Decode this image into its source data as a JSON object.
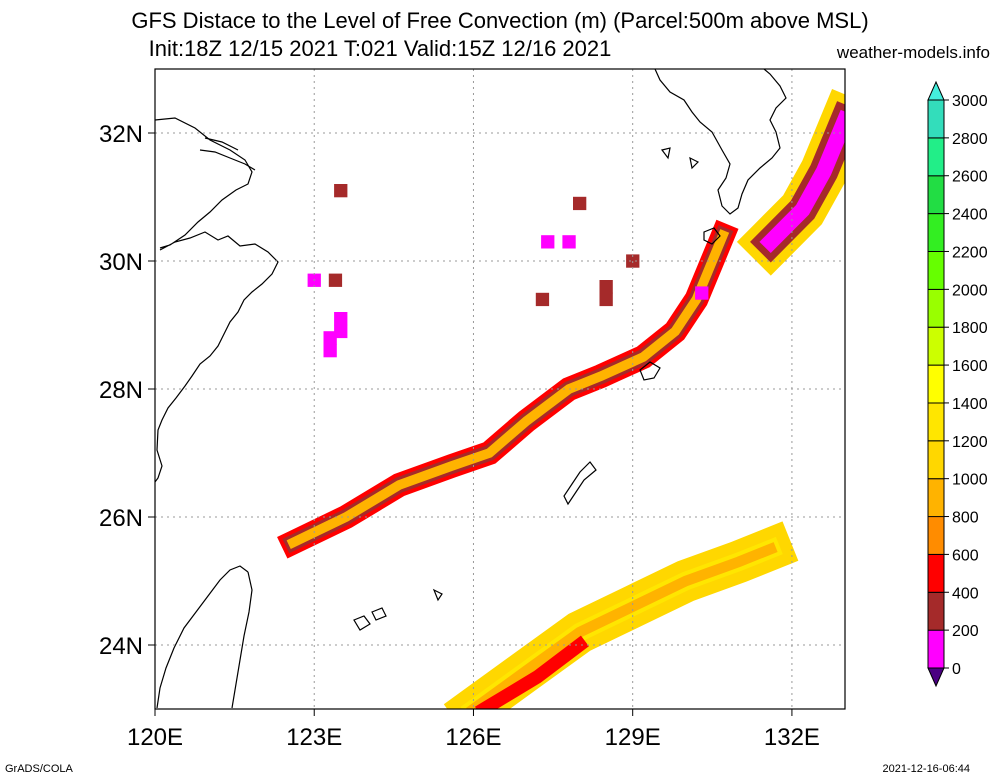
{
  "title_line1": "GFS Distace to the Level of Free Convection (m) (Parcel:500m above MSL)",
  "title_line2": "Init:18Z 12/15 2021 T:021 Valid:15Z 12/16 2021",
  "site": "weather-models.info",
  "footer_left": "GrADS/COLA",
  "footer_right": "2021-12-16-06:44",
  "map": {
    "lon_range": [
      120,
      133
    ],
    "lat_range": [
      23,
      33
    ],
    "lon_ticks": [
      {
        "value": 120,
        "label": "120E"
      },
      {
        "value": 123,
        "label": "123E"
      },
      {
        "value": 126,
        "label": "126E"
      },
      {
        "value": 129,
        "label": "129E"
      },
      {
        "value": 132,
        "label": "132E"
      }
    ],
    "lat_ticks": [
      {
        "value": 24,
        "label": "24N"
      },
      {
        "value": 26,
        "label": "26N"
      },
      {
        "value": 28,
        "label": "28N"
      },
      {
        "value": 30,
        "label": "30N"
      },
      {
        "value": 32,
        "label": "32N"
      }
    ],
    "grid": true
  },
  "colorbar": {
    "levels": [
      0,
      200,
      400,
      600,
      800,
      1000,
      1200,
      1400,
      1600,
      1800,
      2000,
      2200,
      2400,
      2600,
      2800,
      3000
    ],
    "colors": [
      "#4b0082",
      "#ff00ff",
      "#a52a2a",
      "#ff0000",
      "#ff8c00",
      "#ffb300",
      "#ffd700",
      "#ffe600",
      "#ffff00",
      "#ccff00",
      "#99ff00",
      "#66ff00",
      "#33ee22",
      "#22dd44",
      "#22ee88",
      "#33ddbb",
      "#44eedd"
    ]
  },
  "cells": [
    {
      "lon": 123.5,
      "lat": 31.1,
      "v": 300
    },
    {
      "lon": 123.0,
      "lat": 29.7,
      "v": 100
    },
    {
      "lon": 123.4,
      "lat": 29.7,
      "v": 300
    },
    {
      "lon": 123.5,
      "lat": 29.1,
      "v": 100
    },
    {
      "lon": 123.3,
      "lat": 28.8,
      "v": 50
    },
    {
      "lon": 123.3,
      "lat": 28.6,
      "v": 50
    },
    {
      "lon": 123.5,
      "lat": 28.9,
      "v": 50
    },
    {
      "lon": 127.4,
      "lat": 30.3,
      "v": 100
    },
    {
      "lon": 127.8,
      "lat": 30.3,
      "v": 100
    },
    {
      "lon": 128.0,
      "lat": 30.9,
      "v": 300
    },
    {
      "lon": 127.3,
      "lat": 29.4,
      "v": 300
    },
    {
      "lon": 128.5,
      "lat": 29.6,
      "v": 300
    },
    {
      "lon": 128.5,
      "lat": 29.4,
      "v": 300
    },
    {
      "lon": 129.0,
      "lat": 30.0,
      "v": 300
    },
    {
      "lon": 130.3,
      "lat": 29.5,
      "v": 100
    }
  ],
  "bands": [
    {
      "points": [
        [
          122.6,
          25.6
        ],
        [
          123.6,
          26.0
        ],
        [
          124.6,
          26.5
        ],
        [
          125.6,
          26.8
        ],
        [
          126.3,
          27.0
        ],
        [
          127.0,
          27.5
        ],
        [
          127.8,
          28.0
        ],
        [
          128.4,
          28.2
        ],
        [
          129.2,
          28.5
        ],
        [
          129.8,
          28.9
        ],
        [
          130.2,
          29.4
        ],
        [
          130.5,
          30.0
        ],
        [
          130.7,
          30.4
        ]
      ],
      "layers": [
        {
          "v": 500,
          "w": 0.45
        },
        {
          "v": 300,
          "w": 0.3
        },
        {
          "v": 900,
          "w": 0.18
        }
      ]
    },
    {
      "points": [
        [
          126.0,
          23.0
        ],
        [
          127.0,
          23.6
        ],
        [
          128.0,
          24.2
        ],
        [
          129.0,
          24.6
        ],
        [
          130.0,
          25.0
        ],
        [
          131.0,
          25.3
        ],
        [
          131.6,
          25.5
        ]
      ],
      "layers": [
        {
          "v": 1100,
          "w": 0.8
        },
        {
          "v": 1300,
          "w": 0.35
        },
        {
          "v": 900,
          "w": 0.2
        }
      ]
    },
    {
      "points": [
        [
          126.2,
          23.0
        ],
        [
          127.2,
          23.5
        ],
        [
          128.0,
          24.0
        ]
      ],
      "layers": [
        {
          "v": 500,
          "w": 0.25
        }
      ]
    },
    {
      "points": [
        [
          131.6,
          30.3
        ],
        [
          132.2,
          30.8
        ],
        [
          132.6,
          31.4
        ],
        [
          133.0,
          32.2
        ]
      ],
      "layers": [
        {
          "v": 1100,
          "w": 0.9
        },
        {
          "v": 300,
          "w": 0.55
        },
        {
          "v": 100,
          "w": 0.3
        },
        {
          "v": 50,
          "w": 0.12
        }
      ]
    }
  ]
}
